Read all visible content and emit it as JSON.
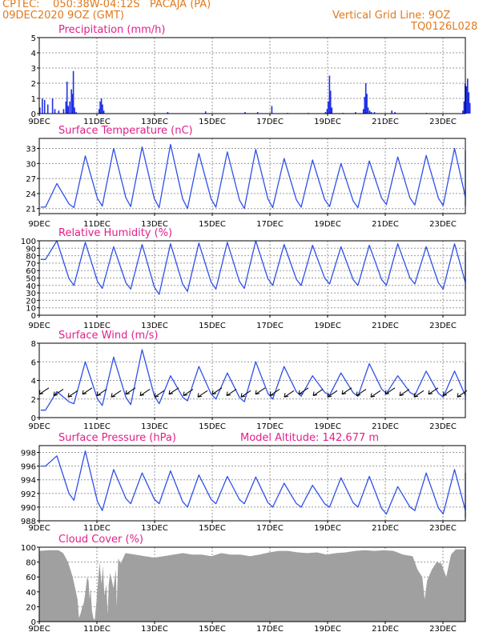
{
  "header": {
    "line1": "CPTEC:    050:38W-04:12S   PACAJA (PA)",
    "line2": "09DEC2020 9OZ (GMT)",
    "right1": "Vertical Grid Line: 9OZ",
    "right2": "TQ0126L028"
  },
  "colors": {
    "header": "#e07a1e",
    "title": "#e0208a",
    "line": "#3050e8",
    "bar": "#2030e8",
    "cloud": "#a0a0a0",
    "grid": "#9a9a9a"
  },
  "chart_data": [
    {
      "type": "bar",
      "title": "Precipitation (mm/h)",
      "xlabel": "",
      "ylabel": "",
      "x_ticks": [
        "9DEC",
        "11DEC",
        "13DEC",
        "15DEC",
        "17DEC",
        "19DEC",
        "21DEC",
        "23DEC"
      ],
      "ylim": [
        0,
        5
      ],
      "y_ticks": [
        0,
        1,
        2,
        3,
        4,
        5
      ],
      "grid": true,
      "series": [
        {
          "name": "precipitation",
          "points": [
            [
              0.0,
              0.4
            ],
            [
              0.15,
              1.0
            ],
            [
              0.3,
              0.9
            ],
            [
              0.5,
              0.6
            ],
            [
              0.8,
              1.0
            ],
            [
              0.95,
              0.3
            ],
            [
              1.2,
              0.2
            ],
            [
              1.5,
              0.3
            ],
            [
              1.65,
              0.8
            ],
            [
              1.72,
              2.1
            ],
            [
              1.8,
              0.5
            ],
            [
              1.9,
              0.8
            ],
            [
              2.0,
              1.6
            ],
            [
              2.05,
              1.3
            ],
            [
              2.12,
              2.8
            ],
            [
              2.2,
              0.4
            ],
            [
              2.3,
              0.1
            ],
            [
              3.75,
              0.3
            ],
            [
              3.82,
              0.8
            ],
            [
              3.9,
              1.0
            ],
            [
              3.97,
              0.6
            ],
            [
              4.05,
              0.2
            ],
            [
              8.1,
              0.1
            ],
            [
              10.5,
              0.15
            ],
            [
              13.0,
              0.1
            ],
            [
              13.8,
              0.1
            ],
            [
              14.7,
              0.5
            ],
            [
              15.7,
              0.05
            ],
            [
              17.0,
              0.05
            ],
            [
              18.1,
              0.1
            ],
            [
              18.2,
              0.3
            ],
            [
              18.27,
              0.8
            ],
            [
              18.35,
              2.5
            ],
            [
              18.42,
              1.5
            ],
            [
              18.5,
              0.4
            ],
            [
              19.2,
              0.05
            ],
            [
              20.0,
              0.1
            ],
            [
              20.5,
              0.3
            ],
            [
              20.58,
              1.1
            ],
            [
              20.65,
              2.0
            ],
            [
              20.72,
              1.3
            ],
            [
              20.8,
              0.4
            ],
            [
              20.9,
              0.2
            ],
            [
              21.0,
              0.1
            ],
            [
              21.2,
              0.1
            ],
            [
              22.3,
              0.2
            ],
            [
              22.5,
              0.1
            ],
            [
              24.5,
              0.05
            ],
            [
              26.8,
              0.2
            ],
            [
              26.88,
              0.8
            ],
            [
              26.95,
              2.0
            ],
            [
              27.02,
              1.8
            ],
            [
              27.1,
              2.3
            ],
            [
              27.18,
              1.4
            ],
            [
              27.25,
              0.7
            ]
          ]
        }
      ]
    },
    {
      "type": "line",
      "title": "Surface Temperature (nC)",
      "xlabel": "",
      "ylabel": "",
      "x_ticks": [
        "9DEC",
        "11DEC",
        "13DEC",
        "15DEC",
        "17DEC",
        "19DEC",
        "21DEC",
        "23DEC"
      ],
      "ylim": [
        20,
        35
      ],
      "y_ticks": [
        21,
        24,
        27,
        30,
        33
      ],
      "grid": true,
      "series": [
        {
          "name": "temperature",
          "min": [
            21.3,
            21.2,
            21.5,
            21.4,
            21.2,
            21.0,
            21.3,
            21.0,
            21.2,
            21.3,
            21.4,
            21.2,
            21.8,
            21.7,
            21.6,
            21.6
          ],
          "max": [
            26.0,
            31.5,
            33.0,
            33.3,
            33.8,
            32.0,
            32.3,
            32.8,
            31.0,
            30.7,
            30.0,
            30.5,
            31.3,
            31.6,
            33.0,
            32.5
          ]
        }
      ]
    },
    {
      "type": "line",
      "title": "Relative Humidity (%)",
      "xlabel": "",
      "ylabel": "",
      "x_ticks": [
        "9DEC",
        "11DEC",
        "13DEC",
        "15DEC",
        "17DEC",
        "19DEC",
        "21DEC",
        "23DEC"
      ],
      "ylim": [
        0,
        100
      ],
      "y_ticks": [
        0,
        10,
        20,
        30,
        40,
        50,
        60,
        70,
        80,
        90,
        100
      ],
      "grid": true,
      "series": [
        {
          "name": "humidity",
          "min": [
            75,
            40,
            36,
            35,
            28,
            32,
            35,
            36,
            40,
            40,
            42,
            40,
            40,
            42,
            35,
            35
          ],
          "max": [
            100,
            98,
            92,
            95,
            96,
            97,
            98,
            100,
            95,
            94,
            92,
            94,
            96,
            92,
            96,
            85
          ]
        }
      ]
    },
    {
      "type": "line",
      "title": "Surface Wind (m/s)",
      "xlabel": "",
      "ylabel": "",
      "x_ticks": [
        "9DEC",
        "11DEC",
        "13DEC",
        "15DEC",
        "17DEC",
        "19DEC",
        "21DEC",
        "23DEC"
      ],
      "ylim": [
        0,
        8
      ],
      "y_ticks": [
        0,
        2,
        4,
        6,
        8
      ],
      "grid": true,
      "series": [
        {
          "name": "wind speed",
          "min": [
            0.8,
            1.5,
            1.3,
            1.4,
            1.5,
            1.8,
            2.0,
            1.7,
            2.0,
            2.3,
            2.4,
            2.3,
            2.6,
            2.4,
            2.2,
            1.9
          ],
          "max": [
            2.8,
            6.0,
            6.5,
            7.3,
            4.5,
            5.5,
            4.8,
            6.0,
            5.5,
            4.5,
            4.8,
            5.8,
            4.5,
            5.0,
            5.0,
            6.0
          ]
        }
      ]
    },
    {
      "type": "line",
      "title": "Surface Pressure (hPa)",
      "annotation": "Model Altitude: 142.677  m",
      "xlabel": "",
      "ylabel": "",
      "x_ticks": [
        "9DEC",
        "11DEC",
        "13DEC",
        "15DEC",
        "17DEC",
        "19DEC",
        "21DEC",
        "23DEC"
      ],
      "ylim": [
        988,
        999
      ],
      "y_ticks": [
        988,
        990,
        992,
        994,
        996,
        998
      ],
      "grid": true,
      "series": [
        {
          "name": "pressure",
          "min": [
            996.0,
            991.0,
            989.5,
            990.5,
            990.5,
            990.0,
            990.5,
            990.5,
            990.0,
            990.0,
            990.0,
            990.0,
            989.0,
            989.5,
            989.0,
            988.5
          ],
          "max": [
            997.5,
            998.2,
            995.5,
            995.0,
            995.3,
            994.7,
            994.5,
            994.4,
            993.5,
            993.2,
            994.3,
            994.5,
            993.0,
            995.0,
            995.5,
            995.0
          ]
        }
      ]
    },
    {
      "type": "area",
      "title": "Cloud Cover (%)",
      "xlabel": "",
      "ylabel": "",
      "x_ticks": [
        "9DEC",
        "11DEC",
        "13DEC",
        "15DEC",
        "17DEC",
        "19DEC",
        "21DEC",
        "23DEC"
      ],
      "ylim": [
        0,
        100
      ],
      "y_ticks": [
        0,
        20,
        40,
        60,
        80,
        100
      ],
      "grid": true,
      "series": [
        {
          "name": "cloud cover",
          "points": [
            [
              0,
              95
            ],
            [
              2,
              96
            ],
            [
              4,
              96
            ],
            [
              5,
              92
            ],
            [
              6,
              80
            ],
            [
              7,
              60
            ],
            [
              7.5,
              45
            ],
            [
              8,
              30
            ],
            [
              8.3,
              5
            ],
            [
              8.6,
              10
            ],
            [
              9,
              20
            ],
            [
              9.3,
              25
            ],
            [
              9.6,
              38
            ],
            [
              10,
              60
            ],
            [
              10.3,
              55
            ],
            [
              10.5,
              30
            ],
            [
              10.7,
              45
            ],
            [
              11,
              15
            ],
            [
              11.3,
              5
            ],
            [
              11.6,
              2
            ],
            [
              12,
              30
            ],
            [
              12.3,
              55
            ],
            [
              12.6,
              80
            ],
            [
              13,
              50
            ],
            [
              13.3,
              75
            ],
            [
              13.6,
              35
            ],
            [
              14,
              50
            ],
            [
              14.3,
              10
            ],
            [
              14.5,
              50
            ],
            [
              14.8,
              65
            ],
            [
              15,
              60
            ],
            [
              15.5,
              45
            ],
            [
              16,
              70
            ],
            [
              16.2,
              20
            ],
            [
              16.5,
              85
            ],
            [
              17,
              78
            ],
            [
              18,
              92
            ],
            [
              20,
              90
            ],
            [
              22,
              88
            ],
            [
              24,
              86
            ],
            [
              26,
              88
            ],
            [
              28,
              90
            ],
            [
              30,
              92
            ],
            [
              32,
              90
            ],
            [
              34,
              90
            ],
            [
              36,
              88
            ],
            [
              38,
              92
            ],
            [
              40,
              90
            ],
            [
              42,
              90
            ],
            [
              44,
              88
            ],
            [
              46,
              90
            ],
            [
              48,
              93
            ],
            [
              50,
              95
            ],
            [
              52,
              95
            ],
            [
              54,
              93
            ],
            [
              56,
              92
            ],
            [
              58,
              93
            ],
            [
              60,
              90
            ],
            [
              62,
              92
            ],
            [
              64,
              93
            ],
            [
              66,
              95
            ],
            [
              68,
              96
            ],
            [
              70,
              95
            ],
            [
              72,
              96
            ],
            [
              74,
              95
            ],
            [
              76,
              90
            ],
            [
              78,
              88
            ],
            [
              79,
              70
            ],
            [
              80,
              60
            ],
            [
              80.5,
              30
            ],
            [
              81,
              55
            ],
            [
              82,
              70
            ],
            [
              83,
              80
            ],
            [
              84,
              78
            ],
            [
              85,
              60
            ],
            [
              86,
              90
            ],
            [
              87,
              97
            ],
            [
              89,
              97
            ]
          ]
        }
      ]
    }
  ]
}
